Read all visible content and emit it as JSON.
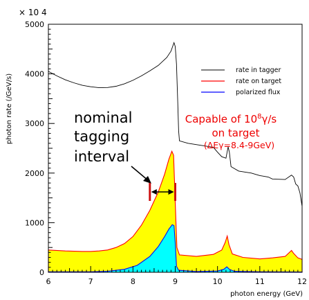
{
  "chart_data": {
    "type": "area",
    "exponent_label": "× 10 4",
    "xlabel": "photon energy (GeV)",
    "ylabel": "photon rate (/GeV/s)",
    "xlim": [
      6,
      12
    ],
    "ylim": [
      0,
      5000
    ],
    "x_ticks": [
      "6",
      "7",
      "8",
      "9",
      "10",
      "11",
      "12"
    ],
    "y_ticks": [
      "0",
      "1000",
      "2000",
      "3000",
      "4000",
      "5000"
    ],
    "legend_position": "top-right",
    "series": [
      {
        "name": "rate in tagger",
        "color": "#000000",
        "style": "line",
        "points": [
          [
            6.0,
            4050
          ],
          [
            6.2,
            3960
          ],
          [
            6.4,
            3880
          ],
          [
            6.6,
            3820
          ],
          [
            6.8,
            3770
          ],
          [
            7.0,
            3740
          ],
          [
            7.2,
            3720
          ],
          [
            7.4,
            3725
          ],
          [
            7.6,
            3750
          ],
          [
            7.8,
            3800
          ],
          [
            8.0,
            3870
          ],
          [
            8.2,
            3960
          ],
          [
            8.4,
            4060
          ],
          [
            8.6,
            4170
          ],
          [
            8.8,
            4330
          ],
          [
            8.9,
            4460
          ],
          [
            8.97,
            4630
          ],
          [
            9.0,
            4550
          ],
          [
            9.03,
            4200
          ],
          [
            9.06,
            3400
          ],
          [
            9.08,
            2850
          ],
          [
            9.1,
            2650
          ],
          [
            9.3,
            2600
          ],
          [
            9.6,
            2560
          ],
          [
            9.9,
            2520
          ],
          [
            10.0,
            2420
          ],
          [
            10.1,
            2330
          ],
          [
            10.2,
            2300
          ],
          [
            10.25,
            2530
          ],
          [
            10.28,
            2420
          ],
          [
            10.32,
            2130
          ],
          [
            10.5,
            2040
          ],
          [
            10.8,
            2000
          ],
          [
            11.0,
            1950
          ],
          [
            11.2,
            1920
          ],
          [
            11.3,
            1880
          ],
          [
            11.6,
            1870
          ],
          [
            11.75,
            1960
          ],
          [
            11.8,
            1920
          ],
          [
            11.85,
            1780
          ],
          [
            11.9,
            1740
          ],
          [
            11.95,
            1600
          ],
          [
            12.0,
            1330
          ]
        ]
      },
      {
        "name": "rate on target",
        "color": "#ff0000",
        "fill": "#ffff00",
        "style": "filled",
        "points": [
          [
            6.0,
            450
          ],
          [
            6.4,
            430
          ],
          [
            6.8,
            420
          ],
          [
            7.0,
            420
          ],
          [
            7.2,
            430
          ],
          [
            7.4,
            450
          ],
          [
            7.6,
            500
          ],
          [
            7.8,
            580
          ],
          [
            8.0,
            720
          ],
          [
            8.2,
            950
          ],
          [
            8.4,
            1250
          ],
          [
            8.6,
            1620
          ],
          [
            8.75,
            1980
          ],
          [
            8.85,
            2280
          ],
          [
            8.92,
            2440
          ],
          [
            8.96,
            2360
          ],
          [
            9.0,
            1400
          ],
          [
            9.04,
            500
          ],
          [
            9.1,
            350
          ],
          [
            9.5,
            320
          ],
          [
            9.9,
            360
          ],
          [
            10.1,
            450
          ],
          [
            10.18,
            600
          ],
          [
            10.23,
            730
          ],
          [
            10.27,
            560
          ],
          [
            10.35,
            370
          ],
          [
            10.6,
            300
          ],
          [
            11.0,
            270
          ],
          [
            11.3,
            290
          ],
          [
            11.6,
            320
          ],
          [
            11.75,
            440
          ],
          [
            11.8,
            380
          ],
          [
            11.9,
            290
          ],
          [
            12.0,
            260
          ]
        ]
      },
      {
        "name": "polarized flux",
        "color": "#0000ff",
        "fill": "#00ffff",
        "style": "filled",
        "points": [
          [
            6.0,
            10
          ],
          [
            7.0,
            10
          ],
          [
            7.4,
            20
          ],
          [
            7.8,
            60
          ],
          [
            8.1,
            140
          ],
          [
            8.4,
            320
          ],
          [
            8.6,
            520
          ],
          [
            8.75,
            720
          ],
          [
            8.85,
            870
          ],
          [
            8.93,
            960
          ],
          [
            8.97,
            940
          ],
          [
            9.0,
            600
          ],
          [
            9.03,
            120
          ],
          [
            9.08,
            40
          ],
          [
            9.5,
            15
          ],
          [
            10.0,
            25
          ],
          [
            10.15,
            60
          ],
          [
            10.22,
            110
          ],
          [
            10.28,
            60
          ],
          [
            10.4,
            20
          ],
          [
            11.0,
            10
          ],
          [
            12.0,
            5
          ]
        ]
      }
    ],
    "annotations": {
      "nominal_line1": "nominal",
      "nominal_line2": "tagging",
      "nominal_line3": "interval",
      "interval_start": 8.4,
      "interval_end": 9.0,
      "interval_level": 1620,
      "capable_base": "Capable of 10",
      "capable_sup": "8",
      "capable_unit": "γ/s",
      "capable_line2": "on target",
      "capable_line3": "(ΔEγ=8.4-9GeV)"
    }
  }
}
